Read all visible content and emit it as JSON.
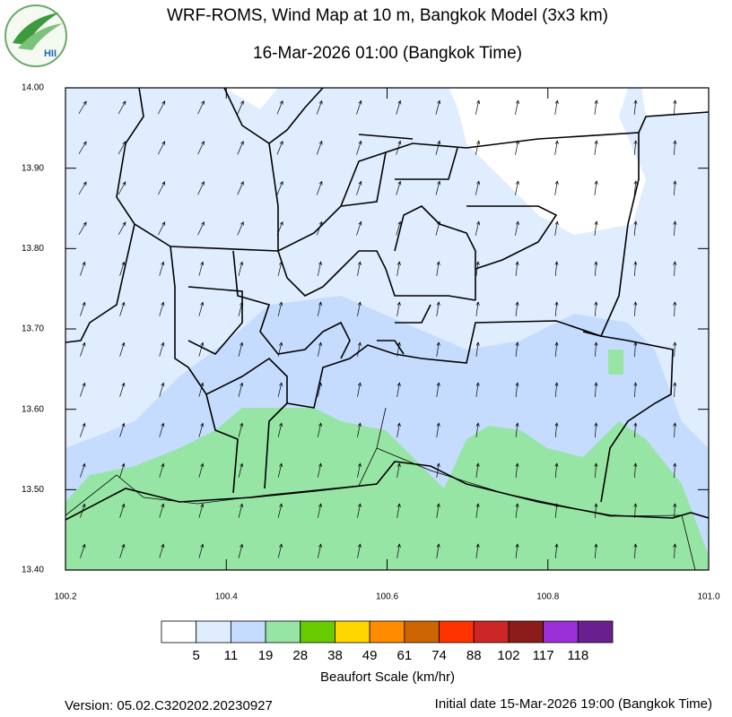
{
  "logo_text": "HII",
  "title": "WRF-ROMS, Wind Map at 10 m, Bangkok Model (3x3 km)",
  "subtitle": "16-Mar-2026 01:00 (Bangkok Time)",
  "map": {
    "xlim": [
      100.2,
      101.0
    ],
    "ylim": [
      13.4,
      14.0
    ],
    "xticks": [
      100.2,
      100.4,
      100.6,
      100.8,
      {
        "value": 101.0,
        "label": "101.0"
      }
    ],
    "yticks": [
      {
        "value": 13.4,
        "label": "13.40"
      },
      {
        "value": 13.5,
        "label": "13.50"
      },
      {
        "value": 13.6,
        "label": "13.60"
      },
      {
        "value": 13.7,
        "label": "13.70"
      },
      {
        "value": 13.8,
        "label": "13.80"
      },
      {
        "value": 13.9,
        "label": "13.90"
      },
      {
        "value": 14.0,
        "label": "14.00"
      }
    ]
  },
  "colorbar": {
    "levels": [
      5,
      11,
      19,
      28,
      38,
      49,
      61,
      74,
      88,
      102,
      117,
      118
    ],
    "colors": [
      "#ffffff",
      "#e0edff",
      "#c6dcff",
      "#97e5a5",
      "#66cc00",
      "#ffd700",
      "#ff8c00",
      "#cd6600",
      "#ff3300",
      "#cd2626",
      "#8b1a1a",
      "#9b30d9",
      "#6a1f8f"
    ],
    "label": "Beaufort Scale (km/hr)"
  },
  "version": "Version: 05.02.C320202.20230927",
  "initial_date": "Initial date 15-Mar-2026 19:00 (Bangkok Time)"
}
